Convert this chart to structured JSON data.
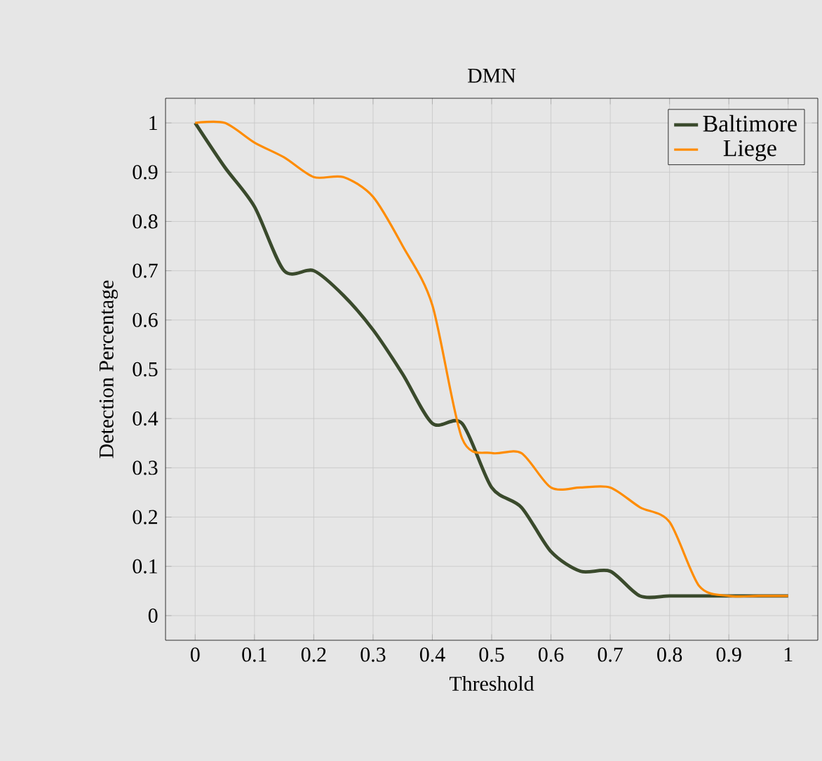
{
  "chart_data": {
    "type": "line",
    "title": "DMN",
    "xlabel": "Threshold",
    "ylabel": "Detection Percentage",
    "x": [
      0,
      0.05,
      0.1,
      0.15,
      0.2,
      0.25,
      0.3,
      0.35,
      0.4,
      0.45,
      0.5,
      0.55,
      0.6,
      0.65,
      0.7,
      0.75,
      0.8,
      0.85,
      0.9,
      0.95,
      1
    ],
    "series": [
      {
        "name": "Baltimore",
        "color": "#3a4a2c",
        "values": [
          1,
          0.91,
          0.83,
          0.7,
          0.7,
          0.65,
          0.58,
          0.49,
          0.39,
          0.39,
          0.26,
          0.22,
          0.13,
          0.09,
          0.09,
          0.04,
          0.04,
          0.04,
          0.04,
          0.04,
          0.04
        ]
      },
      {
        "name": "Liege",
        "color": "#ff8c00",
        "values": [
          1,
          1,
          0.96,
          0.93,
          0.89,
          0.89,
          0.85,
          0.75,
          0.63,
          0.36,
          0.33,
          0.33,
          0.26,
          0.26,
          0.26,
          0.22,
          0.19,
          0.06,
          0.04,
          0.04,
          0.04
        ]
      }
    ],
    "xlim": [
      -0.05,
      1.05
    ],
    "ylim": [
      -0.05,
      1.05
    ],
    "xticks": [
      0,
      0.1,
      0.2,
      0.3,
      0.4,
      0.5,
      0.6,
      0.7,
      0.8,
      0.9,
      1
    ],
    "yticks": [
      0,
      0.1,
      0.2,
      0.3,
      0.4,
      0.5,
      0.6,
      0.7,
      0.8,
      0.9,
      1
    ],
    "grid": true,
    "legend": "top right",
    "marker": "none",
    "line_style": "solid"
  }
}
